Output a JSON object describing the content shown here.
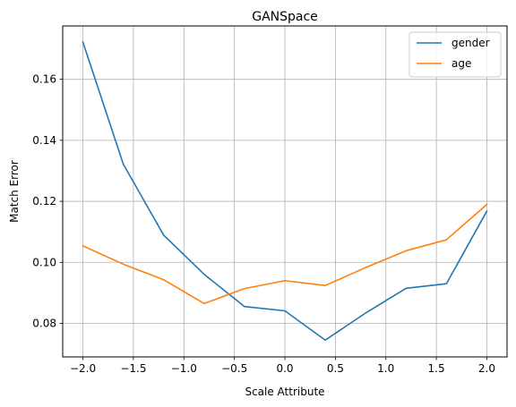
{
  "chart_data": {
    "type": "line",
    "title": "GANSpace",
    "xlabel": "Scale Attribute",
    "ylabel": "Match Error",
    "x": [
      -2.0,
      -1.6,
      -1.2,
      -0.8,
      -0.4,
      0.0,
      0.4,
      0.8,
      1.2,
      1.6,
      2.0
    ],
    "xlim": [
      -2.2,
      2.2
    ],
    "ylim": [
      0.069,
      0.1775
    ],
    "xticks": [
      -2.0,
      -1.5,
      -1.0,
      -0.5,
      0.0,
      0.5,
      1.0,
      1.5,
      2.0
    ],
    "xtick_labels": [
      "−2.0",
      "−1.5",
      "−1.0",
      "−0.5",
      "0.0",
      "0.5",
      "1.0",
      "1.5",
      "2.0"
    ],
    "yticks": [
      0.08,
      0.1,
      0.12,
      0.14,
      0.16
    ],
    "ytick_labels": [
      "0.08",
      "0.10",
      "0.12",
      "0.14",
      "0.16"
    ],
    "grid": true,
    "legend": "top-right",
    "series": [
      {
        "name": "gender",
        "color": "#1f77b4",
        "values": [
          0.1722,
          0.1322,
          0.1089,
          0.0961,
          0.0855,
          0.0841,
          0.0745,
          0.0834,
          0.0915,
          0.093,
          0.1168
        ]
      },
      {
        "name": "age",
        "color": "#ff7f0e",
        "values": [
          0.1054,
          0.0994,
          0.0943,
          0.0865,
          0.0914,
          0.094,
          0.0924,
          0.0983,
          0.1038,
          0.1074,
          0.119
        ]
      }
    ]
  }
}
